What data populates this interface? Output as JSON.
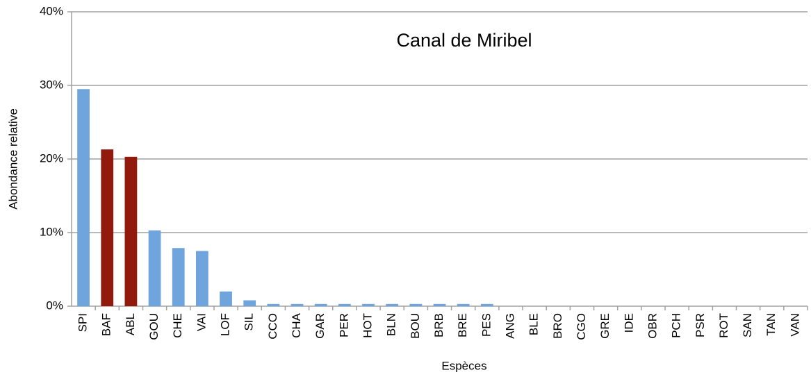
{
  "chart_data": {
    "type": "bar",
    "title": "Canal de Miribel",
    "x_label": "Espèces",
    "y_label": "Abondance relative",
    "categories": [
      "SPI",
      "BAF",
      "ABL",
      "GOU",
      "CHE",
      "VAI",
      "LOF",
      "SIL",
      "CCO",
      "CHA",
      "GAR",
      "PER",
      "HOT",
      "BLN",
      "BOU",
      "BRB",
      "BRE",
      "PES",
      "ANG",
      "BLE",
      "BRO",
      "CGO",
      "GRE",
      "IDE",
      "OBR",
      "PCH",
      "PSR",
      "ROT",
      "SAN",
      "TAN",
      "VAN"
    ],
    "values": [
      29.5,
      21.3,
      20.3,
      10.3,
      7.9,
      7.5,
      2.0,
      0.8,
      0.3,
      0.3,
      0.3,
      0.3,
      0.3,
      0.3,
      0.3,
      0.3,
      0.3,
      0.3,
      0,
      0,
      0,
      0,
      0,
      0,
      0,
      0,
      0,
      0,
      0,
      0,
      0
    ],
    "colors": [
      "#6fa5dc",
      "#921a0c",
      "#921a0c",
      "#6fa5dc",
      "#6fa5dc",
      "#6fa5dc",
      "#6fa5dc",
      "#6fa5dc",
      "#6fa5dc",
      "#6fa5dc",
      "#6fa5dc",
      "#6fa5dc",
      "#6fa5dc",
      "#6fa5dc",
      "#6fa5dc",
      "#6fa5dc",
      "#6fa5dc",
      "#6fa5dc",
      "#6fa5dc",
      "#6fa5dc",
      "#6fa5dc",
      "#6fa5dc",
      "#6fa5dc",
      "#6fa5dc",
      "#6fa5dc",
      "#6fa5dc",
      "#6fa5dc",
      "#6fa5dc",
      "#6fa5dc",
      "#6fa5dc",
      "#6fa5dc"
    ],
    "ylim": [
      0,
      40
    ],
    "yticks": [
      {
        "value": 0,
        "label": "0%"
      },
      {
        "value": 10,
        "label": "10%"
      },
      {
        "value": 20,
        "label": "20%"
      },
      {
        "value": 30,
        "label": "30%"
      },
      {
        "value": 40,
        "label": "40%"
      }
    ],
    "grid": true
  }
}
